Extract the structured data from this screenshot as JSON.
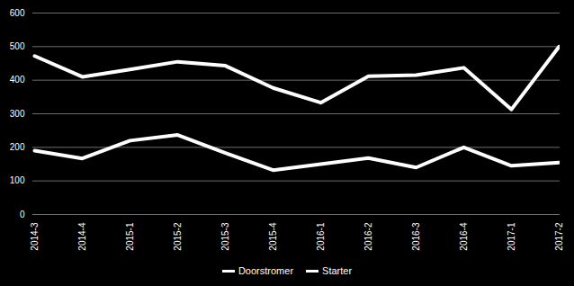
{
  "chart_data": {
    "type": "line",
    "categories": [
      "2014-3",
      "2014-4",
      "2015-1",
      "2015-2",
      "2015-3",
      "2015-4",
      "2016-1",
      "2016-2",
      "2016-3",
      "2016-4",
      "2017-1",
      "2017-2"
    ],
    "series": [
      {
        "name": "Doorstromer",
        "color": "#ffffff",
        "values": [
          472,
          410,
          432,
          455,
          443,
          377,
          333,
          412,
          415,
          437,
          313,
          500
        ]
      },
      {
        "name": "Starter",
        "color": "#ffffff",
        "values": [
          190,
          167,
          220,
          237,
          183,
          132,
          150,
          168,
          140,
          200,
          145,
          155
        ]
      }
    ],
    "ylim": [
      0,
      600
    ],
    "yticks": [
      0,
      100,
      200,
      300,
      400,
      500,
      600
    ],
    "grid": true,
    "legend": "bottom"
  }
}
